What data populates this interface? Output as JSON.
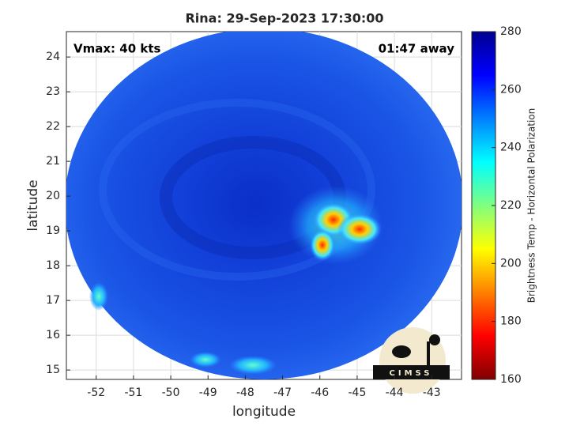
{
  "chart_data": {
    "type": "map",
    "title": "Rina: 29-Sep-2023 17:30:00",
    "annotations": [
      "Vmax: 40 kts",
      "01:47 away"
    ],
    "x_label": "longitude",
    "y_label": "latitude",
    "xlim": [
      -52.8,
      -42.2
    ],
    "xticks": [
      -52,
      -51,
      -50,
      -49,
      -48,
      -47,
      -46,
      -45,
      -44,
      -43
    ],
    "ylim": [
      14.73,
      24.73
    ],
    "yticks": [
      15,
      16,
      17,
      18,
      19,
      20,
      21,
      22,
      23,
      24
    ],
    "grid": true,
    "colorbar": {
      "label": "Brightness Temp - Horizontal Polarization",
      "clim": [
        160,
        280
      ],
      "ticks": [
        160,
        180,
        200,
        220,
        240,
        260,
        280
      ],
      "colormap": [
        "#800000",
        "#ff0000",
        "#ff8000",
        "#ffff00",
        "#80ff80",
        "#00ffff",
        "#0080ff",
        "#0000ff",
        "#00008f"
      ]
    },
    "logo": "CIMSS"
  }
}
